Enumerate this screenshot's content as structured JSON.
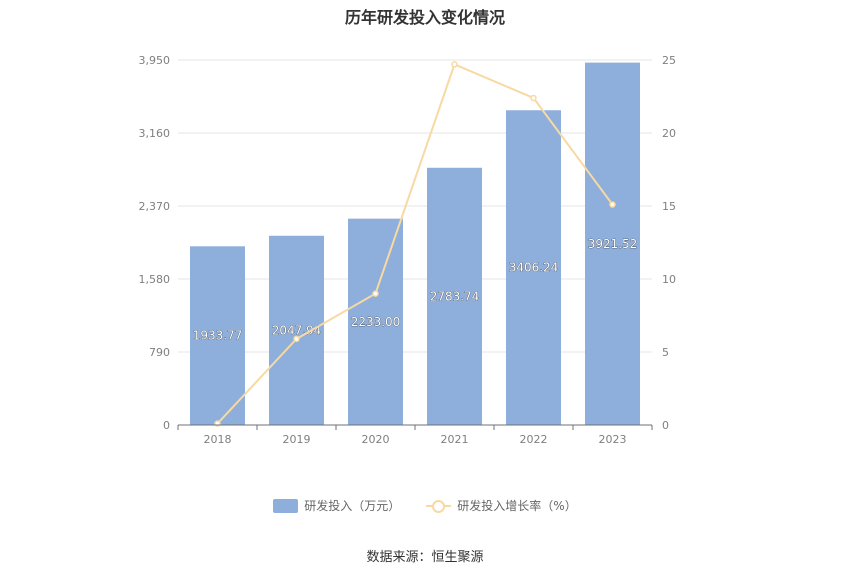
{
  "chart_data": {
    "type": "bar",
    "title": "历年研发投入变化情况",
    "categories": [
      "2018",
      "2019",
      "2020",
      "2021",
      "2022",
      "2023"
    ],
    "y_left": {
      "ticks": [
        "0",
        "790",
        "1,580",
        "2,370",
        "3,160",
        "3,950"
      ],
      "ylim": [
        0,
        3950
      ]
    },
    "y_right": {
      "ticks": [
        "0",
        "5",
        "10",
        "15",
        "20",
        "25"
      ],
      "ylim": [
        0,
        25
      ]
    },
    "series": [
      {
        "name": "研发投入（万元）",
        "type": "bar",
        "axis": "left",
        "color": "#8eaedb",
        "values": [
          1933.77,
          2047.94,
          2233.0,
          2783.74,
          3406.24,
          3921.52
        ],
        "labels": [
          "1933.77",
          "2047.94",
          "2233.00",
          "2783.74",
          "3406.24",
          "3921.52"
        ]
      },
      {
        "name": "研发投入增长率（%）",
        "type": "line",
        "axis": "right",
        "color": "#f7d9a3",
        "values": [
          0.1,
          5.9,
          9.0,
          24.7,
          22.4,
          15.1
        ]
      }
    ],
    "grid": true,
    "legend": "bottom-center"
  },
  "source": "数据来源：恒生聚源"
}
